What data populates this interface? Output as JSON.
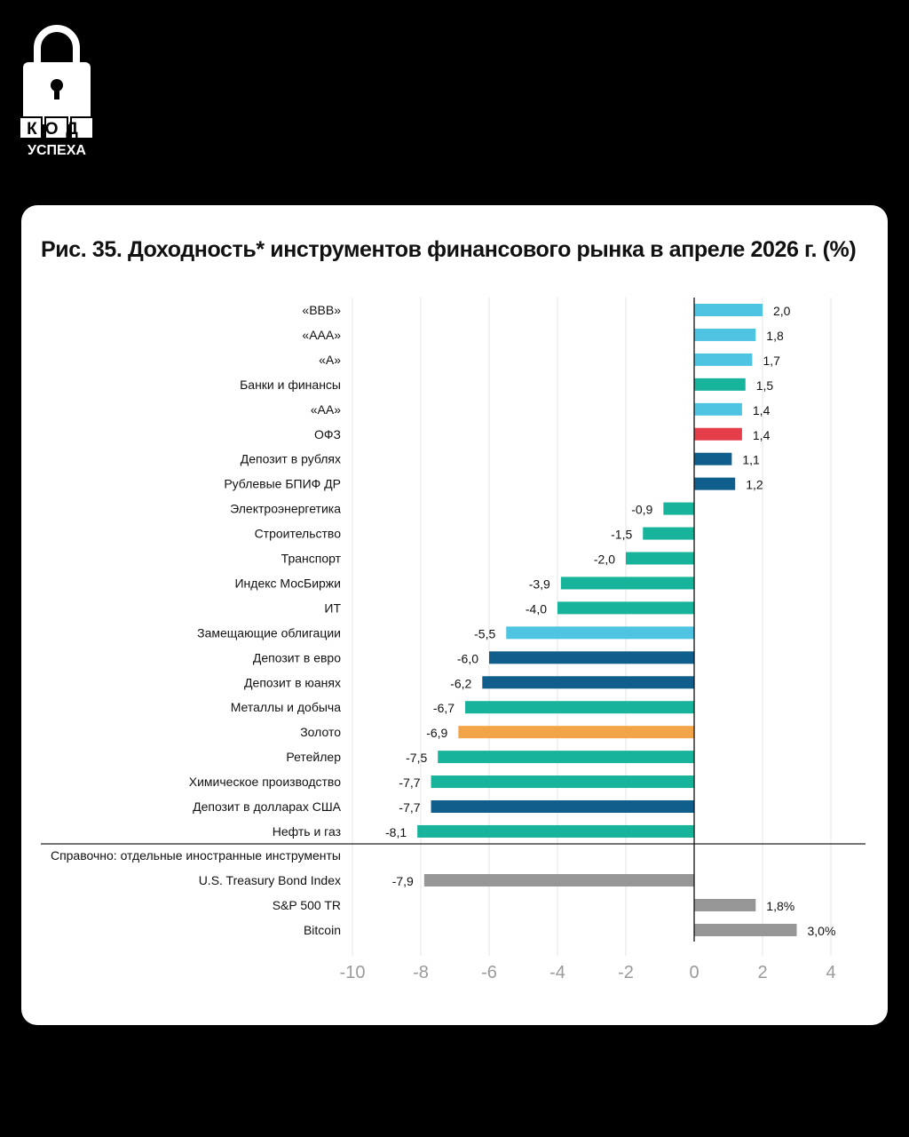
{
  "logo": {
    "line1": "КОД",
    "line2": "УСПЕХА"
  },
  "chart_data": {
    "type": "bar",
    "orientation": "horizontal",
    "title": "Рис. 35. Доходность* инструментов финансового рынка в апреле 2026 г. (%)",
    "xlim": [
      -10,
      4
    ],
    "ticks": [
      "-10",
      "-8",
      "-6",
      "-4",
      "-2",
      "0",
      "2",
      "4"
    ],
    "grid": true,
    "colors": {
      "light_blue": "#4fc4e2",
      "teal": "#17b39b",
      "red": "#e63d4a",
      "dark_blue": "#0f5e8c",
      "orange": "#f2a548",
      "gray": "#969696"
    },
    "bars": [
      {
        "label": "«BBB»",
        "value": 2.0,
        "display": "2,0",
        "color": "#4fc4e2"
      },
      {
        "label": "«AAA»",
        "value": 1.8,
        "display": "1,8",
        "color": "#4fc4e2"
      },
      {
        "label": "«A»",
        "value": 1.7,
        "display": "1,7",
        "color": "#4fc4e2"
      },
      {
        "label": "Банки и финансы",
        "value": 1.5,
        "display": "1,5",
        "color": "#17b39b"
      },
      {
        "label": "«AA»",
        "value": 1.4,
        "display": "1,4",
        "color": "#4fc4e2"
      },
      {
        "label": "ОФЗ",
        "value": 1.4,
        "display": "1,4",
        "color": "#e63d4a"
      },
      {
        "label": "Депозит в рублях",
        "value": 1.1,
        "display": "1,1",
        "color": "#0f5e8c"
      },
      {
        "label": "Рублевые БПИФ ДР",
        "value": 1.2,
        "display": "1,2",
        "color": "#0f5e8c"
      },
      {
        "label": "Электроэнергетика",
        "value": -0.9,
        "display": "-0,9",
        "color": "#17b39b"
      },
      {
        "label": "Строительство",
        "value": -1.5,
        "display": "-1,5",
        "color": "#17b39b"
      },
      {
        "label": "Транспорт",
        "value": -2.0,
        "display": "-2,0",
        "color": "#17b39b"
      },
      {
        "label": "Индекс МосБиржи",
        "value": -3.9,
        "display": "-3,9",
        "color": "#17b39b"
      },
      {
        "label": "ИТ",
        "value": -4.0,
        "display": "-4,0",
        "color": "#17b39b"
      },
      {
        "label": "Замещающие облигации",
        "value": -5.5,
        "display": "-5,5",
        "color": "#4fc4e2"
      },
      {
        "label": "Депозит в евро",
        "value": -6.0,
        "display": "-6,0",
        "color": "#0f5e8c"
      },
      {
        "label": "Депозит в юанях",
        "value": -6.2,
        "display": "-6,2",
        "color": "#0f5e8c"
      },
      {
        "label": "Металлы и добыча",
        "value": -6.7,
        "display": "-6,7",
        "color": "#17b39b"
      },
      {
        "label": "Золото",
        "value": -6.9,
        "display": "-6,9",
        "color": "#f2a548"
      },
      {
        "label": "Ретейлер",
        "value": -7.5,
        "display": "-7,5",
        "color": "#17b39b"
      },
      {
        "label": "Химическое производство",
        "value": -7.7,
        "display": "-7,7",
        "color": "#17b39b"
      },
      {
        "label": "Депозит в долларах США",
        "value": -7.7,
        "display": "-7,7",
        "color": "#0f5e8c"
      },
      {
        "label": "Нефть и газ",
        "value": -8.1,
        "display": "-8,1",
        "color": "#17b39b"
      }
    ],
    "reference_label": "Справочно: отдельные иностранные инструменты",
    "reference_bars": [
      {
        "label": "U.S. Treasury Bond Index",
        "value": -7.9,
        "display": "-7,9",
        "color": "#969696"
      },
      {
        "label": "S&P 500 TR",
        "value": 1.8,
        "display": "1,8%",
        "color": "#969696"
      },
      {
        "label": "Bitcoin",
        "value": 3.0,
        "display": "3,0%",
        "color": "#969696"
      }
    ]
  }
}
